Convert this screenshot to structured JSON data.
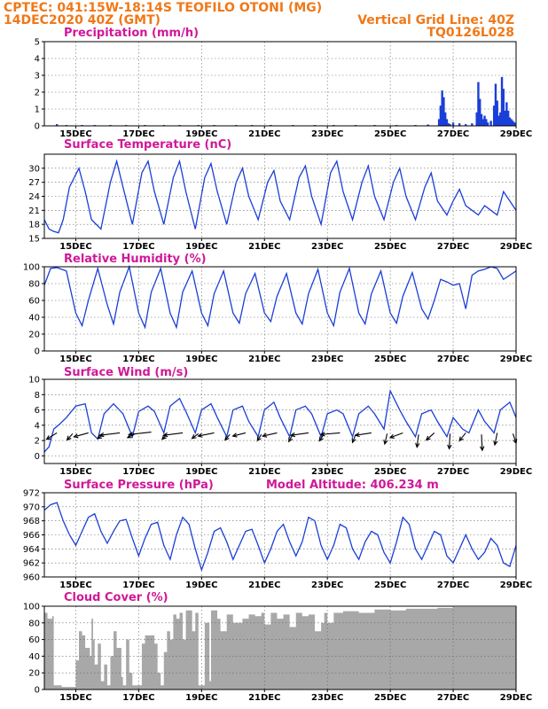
{
  "header": {
    "line1": "CPTEC:   041:15W-18:14S   TEOFILO OTONI (MG)",
    "line2": "14DEC2020 40Z (GMT)",
    "grid_note": "Vertical Grid Line: 40Z",
    "code": "TQ0126L028"
  },
  "x_axis": {
    "start_day": 14.0,
    "end_day": 29.0,
    "labels": [
      "15DEC",
      "17DEC",
      "19DEC",
      "21DEC",
      "23DEC",
      "25DEC",
      "27DEC",
      "29DEC"
    ],
    "label_days": [
      15,
      17,
      19,
      21,
      23,
      25,
      27,
      29
    ]
  },
  "colors": {
    "series": "#1a3ed8",
    "cloud": "#a8a8a8",
    "title": "#d01898",
    "header": "#f07818"
  },
  "chart_data": [
    {
      "id": "precip",
      "type": "bar",
      "title": "Precipitation  (mm/h)",
      "ylim": [
        0,
        5
      ],
      "yticks": [
        0,
        1,
        2,
        3,
        4,
        5
      ],
      "x_days": [
        14.4,
        14.7,
        15.2,
        15.6,
        16.1,
        16.6,
        17.2,
        17.8,
        18.3,
        18.9,
        19.4,
        20.1,
        20.6,
        21.2,
        21.9,
        22.6,
        23.2,
        23.9,
        24.5,
        25.2,
        25.8,
        26.2,
        26.55,
        26.6,
        26.65,
        26.7,
        26.75,
        26.8,
        26.85,
        26.9,
        27.0,
        27.2,
        27.4,
        27.6,
        27.75,
        27.8,
        27.85,
        27.9,
        27.95,
        28.0,
        28.05,
        28.1,
        28.2,
        28.3,
        28.35,
        28.4,
        28.45,
        28.5,
        28.55,
        28.6,
        28.65,
        28.7,
        28.75,
        28.8,
        28.85,
        28.9,
        28.95
      ],
      "values": [
        0.1,
        0.05,
        0.05,
        0.05,
        0.05,
        0.05,
        0.05,
        0.05,
        0.05,
        0.05,
        0.05,
        0.05,
        0.05,
        0.05,
        0.05,
        0.05,
        0.05,
        0.05,
        0.05,
        0.05,
        0.05,
        0.08,
        0.4,
        1.2,
        2.1,
        1.7,
        0.8,
        0.4,
        0.15,
        0.1,
        0.2,
        0.15,
        0.1,
        0.15,
        0.8,
        2.6,
        1.6,
        0.7,
        0.4,
        0.6,
        0.4,
        0.2,
        0.3,
        1.2,
        2.5,
        1.5,
        0.6,
        0.8,
        2.9,
        2.2,
        0.9,
        1.4,
        0.9,
        0.5,
        0.4,
        0.3,
        0.2
      ]
    },
    {
      "id": "temp",
      "type": "line",
      "title": "Surface Temperature  (nC)",
      "ylim": [
        15,
        33
      ],
      "yticks": [
        15,
        18,
        21,
        24,
        27,
        30
      ],
      "x_days": [
        14.0,
        14.15,
        14.3,
        14.45,
        14.6,
        14.8,
        15.1,
        15.3,
        15.5,
        15.8,
        16.1,
        16.3,
        16.5,
        16.8,
        17.1,
        17.3,
        17.5,
        17.8,
        18.1,
        18.3,
        18.5,
        18.8,
        19.1,
        19.3,
        19.5,
        19.8,
        20.1,
        20.3,
        20.5,
        20.8,
        21.1,
        21.3,
        21.5,
        21.8,
        22.1,
        22.3,
        22.5,
        22.8,
        23.1,
        23.3,
        23.5,
        23.8,
        24.1,
        24.3,
        24.5,
        24.8,
        25.1,
        25.3,
        25.5,
        25.8,
        26.1,
        26.3,
        26.5,
        26.8,
        27.0,
        27.2,
        27.4,
        27.6,
        27.8,
        28.0,
        28.2,
        28.4,
        28.6,
        28.8,
        29.0
      ],
      "values": [
        19,
        17,
        16.5,
        16.2,
        19,
        26,
        30,
        25,
        19,
        17,
        27,
        31.5,
        26,
        18,
        29,
        31.5,
        25,
        18,
        28,
        31.5,
        25,
        17,
        28,
        31,
        25,
        18,
        27,
        30,
        24,
        19,
        27,
        29.5,
        23,
        19,
        28,
        30.5,
        24,
        18,
        29,
        31.5,
        25,
        19,
        27,
        30.5,
        24,
        19,
        27,
        30,
        24,
        19,
        26,
        29,
        23,
        20,
        23,
        25.5,
        22,
        21,
        20,
        22,
        21,
        20,
        25,
        23,
        21
      ]
    },
    {
      "id": "rh",
      "type": "line",
      "title": "Relative Humidity  (%)",
      "ylim": [
        0,
        100
      ],
      "yticks": [
        0,
        20,
        40,
        60,
        80,
        100
      ],
      "x_days": [
        14.0,
        14.2,
        14.4,
        14.7,
        15.0,
        15.2,
        15.4,
        15.7,
        16.0,
        16.2,
        16.4,
        16.7,
        17.0,
        17.2,
        17.4,
        17.7,
        18.0,
        18.2,
        18.4,
        18.7,
        19.0,
        19.2,
        19.4,
        19.7,
        20.0,
        20.2,
        20.4,
        20.7,
        21.0,
        21.2,
        21.4,
        21.7,
        22.0,
        22.2,
        22.4,
        22.7,
        23.0,
        23.2,
        23.4,
        23.7,
        24.0,
        24.2,
        24.4,
        24.7,
        25.0,
        25.2,
        25.4,
        25.7,
        26.0,
        26.2,
        26.4,
        26.6,
        26.8,
        27.0,
        27.2,
        27.4,
        27.6,
        27.8,
        28.0,
        28.2,
        28.4,
        28.6,
        28.8,
        29.0
      ],
      "values": [
        78,
        98,
        99,
        95,
        45,
        30,
        60,
        98,
        55,
        32,
        70,
        100,
        45,
        28,
        70,
        98,
        45,
        28,
        70,
        95,
        45,
        30,
        68,
        95,
        45,
        33,
        68,
        92,
        45,
        35,
        65,
        92,
        45,
        32,
        68,
        97,
        45,
        30,
        70,
        98,
        45,
        32,
        68,
        95,
        45,
        33,
        65,
        93,
        50,
        38,
        60,
        85,
        82,
        78,
        80,
        50,
        90,
        95,
        97,
        100,
        98,
        85,
        90,
        95
      ]
    },
    {
      "id": "wind",
      "type": "line",
      "title": "Surface  Wind  (m/s)",
      "ylim": [
        -1,
        10
      ],
      "yticks": [
        0,
        2,
        4,
        6,
        8,
        10
      ],
      "x_days": [
        14.0,
        14.15,
        14.3,
        14.5,
        14.7,
        15.0,
        15.3,
        15.5,
        15.7,
        15.9,
        16.2,
        16.5,
        16.8,
        17.0,
        17.3,
        17.5,
        17.8,
        18.0,
        18.3,
        18.5,
        18.8,
        19.0,
        19.3,
        19.5,
        19.8,
        20.0,
        20.3,
        20.5,
        20.8,
        21.0,
        21.3,
        21.5,
        21.8,
        22.0,
        22.3,
        22.5,
        22.8,
        23.0,
        23.3,
        23.5,
        23.8,
        24.0,
        24.3,
        24.5,
        24.8,
        25.0,
        25.3,
        25.5,
        25.8,
        26.0,
        26.3,
        26.5,
        26.8,
        27.0,
        27.3,
        27.5,
        27.8,
        28.0,
        28.3,
        28.5,
        28.8,
        29.0
      ],
      "values": [
        0.5,
        1.2,
        3.5,
        4.2,
        5.0,
        6.5,
        6.8,
        3.0,
        2.2,
        5.5,
        6.8,
        5.5,
        2.5,
        5.8,
        6.5,
        5.8,
        3.0,
        6.5,
        7.5,
        5.8,
        3.0,
        6.0,
        6.8,
        5.0,
        2.5,
        6.0,
        6.5,
        4.5,
        2.5,
        6.0,
        7.0,
        5.0,
        2.5,
        6.0,
        6.5,
        5.5,
        2.5,
        5.5,
        6.0,
        5.5,
        2.5,
        5.5,
        6.5,
        5.5,
        3.5,
        8.5,
        6.0,
        4.5,
        2.5,
        5.5,
        6.0,
        4.5,
        2.5,
        5.0,
        3.5,
        3.0,
        6.0,
        4.5,
        3.0,
        6.0,
        7.0,
        5.0
      ],
      "vector_days": [
        14.4,
        14.9,
        15.4,
        15.9,
        16.4,
        16.9,
        17.4,
        17.9,
        18.4,
        18.9,
        19.4,
        19.9,
        20.4,
        20.9,
        21.4,
        21.9,
        22.4,
        22.9,
        23.4,
        23.9,
        24.4,
        24.9,
        25.4,
        25.9,
        26.4,
        26.9,
        27.4,
        27.9,
        28.4,
        28.9
      ],
      "vector_levels": [
        3.0,
        2.9,
        3.0,
        2.8,
        3.0,
        2.9,
        3.1,
        2.8,
        3.0,
        2.9,
        3.0,
        2.8,
        3.0,
        2.8,
        3.0,
        2.8,
        3.0,
        2.9,
        3.0,
        2.8,
        3.0,
        2.9,
        3.0,
        2.8,
        3.0,
        2.9,
        3.0,
        2.8,
        3.0,
        2.9
      ],
      "vector_u": [
        -1.3,
        -0.7,
        -1.8,
        -0.8,
        -2.5,
        -1.0,
        -2.8,
        -0.6,
        -2.4,
        -0.8,
        -2.0,
        -0.6,
        -1.6,
        -0.5,
        -1.8,
        -0.5,
        -2.2,
        -0.6,
        -2.4,
        -0.4,
        -2.0,
        -0.3,
        -1.6,
        -0.2,
        -1.0,
        -0.1,
        -0.8,
        0.1,
        -0.3,
        0.4
      ],
      "vector_v": [
        -0.8,
        -0.8,
        -0.5,
        -0.5,
        -0.3,
        -0.5,
        -0.3,
        -0.6,
        -0.3,
        -0.6,
        -0.4,
        -0.7,
        -0.4,
        -0.8,
        -0.4,
        -0.9,
        -0.3,
        -0.9,
        -0.2,
        -1.0,
        -0.3,
        -1.3,
        -0.6,
        -1.6,
        -0.9,
        -1.9,
        -1.0,
        -2.0,
        -1.5,
        -1.2
      ]
    },
    {
      "id": "pressure",
      "type": "line",
      "title": "Surface  Pressure  (hPa)",
      "subtitle": "Model Altitude: 406.234  m",
      "ylim": [
        960,
        972
      ],
      "yticks": [
        960,
        962,
        964,
        966,
        968,
        970,
        972
      ],
      "x_days": [
        14.0,
        14.2,
        14.4,
        14.6,
        14.8,
        15.0,
        15.2,
        15.4,
        15.6,
        15.8,
        16.0,
        16.2,
        16.4,
        16.6,
        16.8,
        17.0,
        17.2,
        17.4,
        17.6,
        17.8,
        18.0,
        18.2,
        18.4,
        18.6,
        18.8,
        19.0,
        19.2,
        19.4,
        19.6,
        19.8,
        20.0,
        20.2,
        20.4,
        20.6,
        20.8,
        21.0,
        21.2,
        21.4,
        21.6,
        21.8,
        22.0,
        22.2,
        22.4,
        22.6,
        22.8,
        23.0,
        23.2,
        23.4,
        23.6,
        23.8,
        24.0,
        24.2,
        24.4,
        24.6,
        24.8,
        25.0,
        25.2,
        25.4,
        25.6,
        25.8,
        26.0,
        26.2,
        26.4,
        26.6,
        26.8,
        27.0,
        27.2,
        27.4,
        27.6,
        27.8,
        28.0,
        28.2,
        28.4,
        28.6,
        28.8,
        29.0
      ],
      "values": [
        969.5,
        970.3,
        970.6,
        968.0,
        966.0,
        964.5,
        966.5,
        968.5,
        969.0,
        966.5,
        964.8,
        966.5,
        968.0,
        968.2,
        965.5,
        963.0,
        965.5,
        967.5,
        967.8,
        964.5,
        962.5,
        966.0,
        968.5,
        967.5,
        964.0,
        961.0,
        963.5,
        966.5,
        967.0,
        965.0,
        962.5,
        964.5,
        966.5,
        966.8,
        964.5,
        962.0,
        964.0,
        966.5,
        967.5,
        965.0,
        963.0,
        965.0,
        968.5,
        968.0,
        964.5,
        962.5,
        964.5,
        967.5,
        967.0,
        964.0,
        962.5,
        965.0,
        966.5,
        966.0,
        963.5,
        962.0,
        965.0,
        968.5,
        967.5,
        964.0,
        962.5,
        964.5,
        966.5,
        966.0,
        963.0,
        962.0,
        964.0,
        966.0,
        964.0,
        962.5,
        963.5,
        965.5,
        964.5,
        962.0,
        961.5,
        964.5
      ]
    },
    {
      "id": "cloud",
      "type": "area",
      "title": "Cloud Cover  (%)",
      "ylim": [
        0,
        100
      ],
      "yticks": [
        0,
        20,
        40,
        60,
        80,
        100
      ],
      "x_days": [
        14.0,
        14.1,
        14.25,
        14.3,
        14.5,
        14.55,
        14.9,
        15.0,
        15.1,
        15.2,
        15.3,
        15.45,
        15.5,
        15.55,
        15.6,
        15.7,
        15.8,
        15.9,
        16.0,
        16.1,
        16.2,
        16.3,
        16.45,
        16.5,
        16.6,
        16.7,
        16.8,
        17.0,
        17.1,
        17.2,
        17.5,
        17.6,
        17.7,
        17.8,
        17.9,
        18.0,
        18.1,
        18.2,
        18.3,
        18.4,
        18.5,
        18.7,
        18.8,
        18.9,
        19.0,
        19.1,
        19.25,
        19.3,
        19.5,
        19.6,
        19.8,
        20.0,
        20.3,
        20.5,
        20.7,
        20.9,
        21.0,
        21.2,
        21.4,
        21.6,
        21.8,
        22.0,
        22.2,
        22.4,
        22.6,
        22.8,
        22.9,
        23.0,
        23.2,
        23.5,
        24.0,
        24.5,
        25.0,
        25.5,
        26.0,
        26.5,
        27.0,
        27.5,
        28.0,
        28.5,
        29.0
      ],
      "values": [
        92,
        85,
        88,
        5,
        5,
        3,
        3,
        35,
        70,
        65,
        50,
        40,
        85,
        60,
        30,
        55,
        10,
        30,
        5,
        40,
        70,
        50,
        15,
        5,
        60,
        20,
        5,
        5,
        55,
        65,
        55,
        20,
        5,
        45,
        70,
        60,
        90,
        85,
        92,
        60,
        95,
        70,
        92,
        5,
        5,
        80,
        10,
        95,
        85,
        70,
        90,
        80,
        85,
        90,
        88,
        92,
        78,
        92,
        85,
        90,
        75,
        92,
        88,
        90,
        70,
        80,
        92,
        80,
        92,
        94,
        92,
        96,
        95,
        97,
        97,
        98,
        99,
        99,
        99,
        99,
        99
      ]
    }
  ]
}
